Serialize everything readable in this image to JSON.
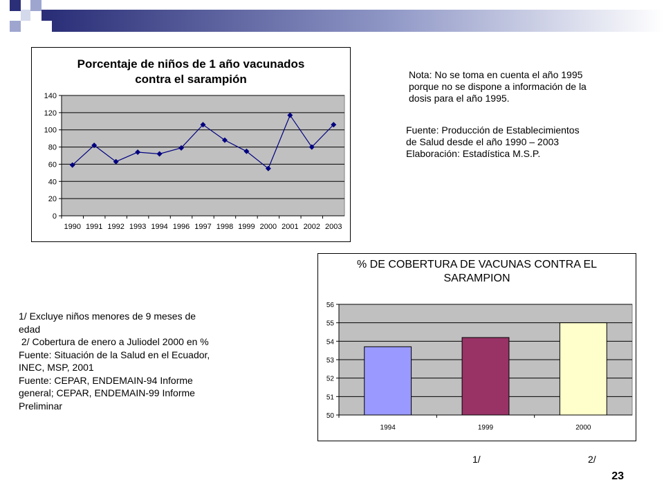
{
  "page_number": "23",
  "header": {
    "accent_dark": "#2b2f78",
    "accent_light": "#9ea6cf"
  },
  "notes": {
    "nota": [
      "Nota: No se toma en cuenta el año 1995",
      "porque no se dispone a información de la",
      "dosis para el año 1995."
    ],
    "fuente": [
      "Fuente: Producción de Establecimientos",
      "de Salud desde el año 1990 – 2003",
      "Elaboración: Estadística M.S.P."
    ],
    "footnotes": [
      "1/ Excluye niños menores de 9 meses de",
      "edad",
      " 2/ Cobertura de enero a Juliodel 2000 en %",
      "Fuente: Situación de la Salud en el Ecuador,",
      "INEC, MSP, 2001",
      "Fuente: CEPAR, ENDEMAIN-94 Informe",
      "general; CEPAR, ENDEMAIN-99 Informe",
      "Preliminar"
    ],
    "marker_1": "1/",
    "marker_2": "2/"
  },
  "chart_data": [
    {
      "type": "line",
      "title": [
        "Porcentaje de niños de 1 año  vacunados",
        "contra el sarampión"
      ],
      "categories": [
        "1990",
        "1991",
        "1992",
        "1993",
        "1994",
        "1996",
        "1997",
        "1998",
        "1999",
        "2000",
        "2001",
        "2002",
        "2003"
      ],
      "values": [
        59,
        82,
        63,
        74,
        72,
        79,
        106,
        88,
        75,
        55,
        117,
        80,
        106
      ],
      "ylim": [
        0,
        140
      ],
      "yticks": [
        0,
        20,
        40,
        60,
        80,
        100,
        120,
        140
      ],
      "grid": true,
      "plot_bg": "#c0c0c0",
      "line_color": "#000080"
    },
    {
      "type": "bar",
      "title": [
        "% DE COBERTURA DE VACUNAS CONTRA EL",
        "SARAMPION"
      ],
      "categories": [
        "1994",
        "1999",
        "2000"
      ],
      "values": [
        53.7,
        54.2,
        55.0
      ],
      "colors": [
        "#9999ff",
        "#993366",
        "#ffffcc"
      ],
      "ylim": [
        50,
        56
      ],
      "yticks": [
        50,
        51,
        52,
        53,
        54,
        55,
        56
      ],
      "grid": true,
      "plot_bg": "#c0c0c0"
    }
  ]
}
